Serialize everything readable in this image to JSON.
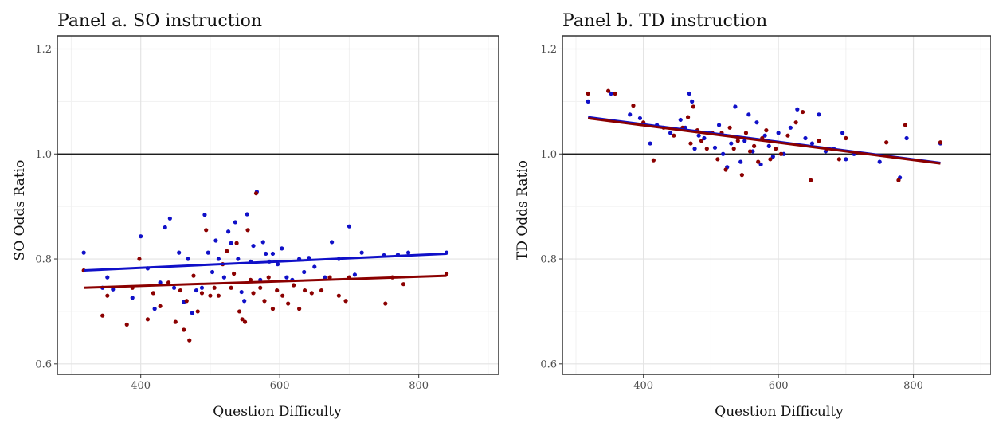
{
  "chart_data": [
    {
      "type": "scatter",
      "title": "Panel a. SO instruction",
      "xlabel": "Question Difficulty",
      "ylabel": "SO Odds Ratio",
      "xlim": [
        280,
        915
      ],
      "ylim": [
        0.58,
        1.225
      ],
      "x_ticks": [
        400,
        600,
        800
      ],
      "y_ticks": [
        0.6,
        0.8,
        1.0,
        1.2
      ],
      "x_tick_labels": [
        "400",
        "600",
        "800"
      ],
      "y_tick_labels": [
        "0.6",
        "0.8",
        "1.0",
        "1.2"
      ],
      "reference_line": 1.0,
      "grid": true,
      "series": [
        {
          "color": "#1010c8",
          "points": [
            [
              318,
              0.812
            ],
            [
              345,
              0.745
            ],
            [
              352,
              0.765
            ],
            [
              360,
              0.742
            ],
            [
              388,
              0.726
            ],
            [
              400,
              0.843
            ],
            [
              410,
              0.782
            ],
            [
              420,
              0.705
            ],
            [
              428,
              0.755
            ],
            [
              435,
              0.86
            ],
            [
              442,
              0.877
            ],
            [
              448,
              0.745
            ],
            [
              455,
              0.812
            ],
            [
              462,
              0.718
            ],
            [
              468,
              0.8
            ],
            [
              474,
              0.697
            ],
            [
              480,
              0.74
            ],
            [
              488,
              0.745
            ],
            [
              492,
              0.884
            ],
            [
              497,
              0.812
            ],
            [
              503,
              0.775
            ],
            [
              508,
              0.835
            ],
            [
              512,
              0.8
            ],
            [
              520,
              0.765
            ],
            [
              526,
              0.852
            ],
            [
              530,
              0.83
            ],
            [
              536,
              0.87
            ],
            [
              540,
              0.8
            ],
            [
              545,
              0.737
            ],
            [
              549,
              0.72
            ],
            [
              553,
              0.885
            ],
            [
              558,
              0.795
            ],
            [
              562,
              0.825
            ],
            [
              567,
              0.928
            ],
            [
              572,
              0.76
            ],
            [
              576,
              0.832
            ],
            [
              580,
              0.81
            ],
            [
              585,
              0.795
            ],
            [
              590,
              0.81
            ],
            [
              597,
              0.79
            ],
            [
              603,
              0.82
            ],
            [
              610,
              0.765
            ],
            [
              618,
              0.76
            ],
            [
              628,
              0.8
            ],
            [
              635,
              0.775
            ],
            [
              642,
              0.802
            ],
            [
              650,
              0.785
            ],
            [
              665,
              0.765
            ],
            [
              675,
              0.832
            ],
            [
              685,
              0.8
            ],
            [
              700,
              0.862
            ],
            [
              708,
              0.77
            ],
            [
              718,
              0.812
            ],
            [
              750,
              0.807
            ],
            [
              770,
              0.808
            ],
            [
              785,
              0.812
            ],
            [
              840,
              0.812
            ]
          ],
          "trend": [
            [
              318,
              0.778
            ],
            [
              840,
              0.81
            ]
          ]
        },
        {
          "color": "#8b0000",
          "points": [
            [
              318,
              0.778
            ],
            [
              345,
              0.692
            ],
            [
              352,
              0.73
            ],
            [
              380,
              0.675
            ],
            [
              388,
              0.745
            ],
            [
              398,
              0.8
            ],
            [
              410,
              0.685
            ],
            [
              418,
              0.735
            ],
            [
              428,
              0.71
            ],
            [
              440,
              0.755
            ],
            [
              450,
              0.68
            ],
            [
              457,
              0.74
            ],
            [
              462,
              0.665
            ],
            [
              466,
              0.72
            ],
            [
              470,
              0.645
            ],
            [
              476,
              0.768
            ],
            [
              482,
              0.7
            ],
            [
              488,
              0.735
            ],
            [
              494,
              0.855
            ],
            [
              500,
              0.73
            ],
            [
              506,
              0.745
            ],
            [
              512,
              0.73
            ],
            [
              518,
              0.79
            ],
            [
              524,
              0.815
            ],
            [
              530,
              0.745
            ],
            [
              534,
              0.772
            ],
            [
              538,
              0.83
            ],
            [
              542,
              0.7
            ],
            [
              546,
              0.685
            ],
            [
              550,
              0.68
            ],
            [
              554,
              0.855
            ],
            [
              558,
              0.76
            ],
            [
              562,
              0.735
            ],
            [
              566,
              0.925
            ],
            [
              572,
              0.745
            ],
            [
              578,
              0.72
            ],
            [
              584,
              0.765
            ],
            [
              590,
              0.705
            ],
            [
              596,
              0.74
            ],
            [
              604,
              0.73
            ],
            [
              612,
              0.715
            ],
            [
              620,
              0.75
            ],
            [
              628,
              0.705
            ],
            [
              636,
              0.74
            ],
            [
              646,
              0.735
            ],
            [
              660,
              0.74
            ],
            [
              672,
              0.765
            ],
            [
              685,
              0.73
            ],
            [
              695,
              0.72
            ],
            [
              700,
              0.765
            ],
            [
              752,
              0.715
            ],
            [
              762,
              0.765
            ],
            [
              778,
              0.752
            ],
            [
              840,
              0.772
            ]
          ],
          "trend": [
            [
              318,
              0.745
            ],
            [
              840,
              0.768
            ]
          ]
        }
      ]
    },
    {
      "type": "scatter",
      "title": "Panel b. TD instruction",
      "xlabel": "Question Difficulty",
      "ylabel": "TD Odds Ratio",
      "xlim": [
        280,
        915
      ],
      "ylim": [
        0.58,
        1.225
      ],
      "x_ticks": [
        400,
        600,
        800
      ],
      "y_ticks": [
        0.6,
        0.8,
        1.0,
        1.2
      ],
      "x_tick_labels": [
        "400",
        "600",
        "800"
      ],
      "y_tick_labels": [
        "0.6",
        "0.8",
        "1.0",
        "1.2"
      ],
      "reference_line": 1.0,
      "grid": true,
      "series": [
        {
          "color": "#1010c8",
          "points": [
            [
              318,
              1.1
            ],
            [
              352,
              1.115
            ],
            [
              380,
              1.075
            ],
            [
              395,
              1.068
            ],
            [
              410,
              1.02
            ],
            [
              420,
              1.055
            ],
            [
              440,
              1.04
            ],
            [
              455,
              1.065
            ],
            [
              462,
              1.05
            ],
            [
              468,
              1.115
            ],
            [
              472,
              1.1
            ],
            [
              476,
              1.01
            ],
            [
              482,
              1.035
            ],
            [
              490,
              1.03
            ],
            [
              498,
              1.04
            ],
            [
              506,
              1.012
            ],
            [
              512,
              1.055
            ],
            [
              518,
              1.0
            ],
            [
              524,
              0.975
            ],
            [
              530,
              1.02
            ],
            [
              536,
              1.09
            ],
            [
              540,
              1.03
            ],
            [
              544,
              0.985
            ],
            [
              550,
              1.025
            ],
            [
              556,
              1.075
            ],
            [
              562,
              1.005
            ],
            [
              568,
              1.06
            ],
            [
              574,
              0.98
            ],
            [
              580,
              1.035
            ],
            [
              586,
              1.015
            ],
            [
              592,
              0.995
            ],
            [
              600,
              1.04
            ],
            [
              608,
              1.0
            ],
            [
              618,
              1.05
            ],
            [
              628,
              1.085
            ],
            [
              640,
              1.03
            ],
            [
              650,
              1.02
            ],
            [
              660,
              1.075
            ],
            [
              670,
              1.005
            ],
            [
              682,
              1.01
            ],
            [
              695,
              1.04
            ],
            [
              700,
              0.99
            ],
            [
              712,
              1.0
            ],
            [
              750,
              0.985
            ],
            [
              780,
              0.955
            ],
            [
              790,
              1.03
            ],
            [
              840,
              1.02
            ]
          ],
          "trend": [
            [
              318,
              1.07
            ],
            [
              840,
              0.983
            ]
          ]
        },
        {
          "color": "#8b0000",
          "points": [
            [
              318,
              1.115
            ],
            [
              348,
              1.12
            ],
            [
              358,
              1.115
            ],
            [
              385,
              1.092
            ],
            [
              400,
              1.06
            ],
            [
              415,
              0.988
            ],
            [
              430,
              1.05
            ],
            [
              445,
              1.035
            ],
            [
              458,
              1.05
            ],
            [
              466,
              1.07
            ],
            [
              470,
              1.02
            ],
            [
              474,
              1.09
            ],
            [
              480,
              1.045
            ],
            [
              486,
              1.025
            ],
            [
              494,
              1.01
            ],
            [
              502,
              1.04
            ],
            [
              510,
              0.99
            ],
            [
              516,
              1.04
            ],
            [
              522,
              0.97
            ],
            [
              528,
              1.05
            ],
            [
              534,
              1.01
            ],
            [
              540,
              1.025
            ],
            [
              546,
              0.96
            ],
            [
              552,
              1.04
            ],
            [
              558,
              1.005
            ],
            [
              564,
              1.015
            ],
            [
              570,
              0.985
            ],
            [
              576,
              1.03
            ],
            [
              582,
              1.045
            ],
            [
              588,
              0.99
            ],
            [
              596,
              1.01
            ],
            [
              604,
              1.0
            ],
            [
              614,
              1.035
            ],
            [
              626,
              1.06
            ],
            [
              636,
              1.08
            ],
            [
              648,
              0.95
            ],
            [
              660,
              1.025
            ],
            [
              672,
              1.01
            ],
            [
              690,
              0.99
            ],
            [
              700,
              1.03
            ],
            [
              760,
              1.022
            ],
            [
              778,
              0.95
            ],
            [
              788,
              1.055
            ],
            [
              840,
              1.022
            ]
          ],
          "trend": [
            [
              318,
              1.068
            ],
            [
              840,
              0.982
            ]
          ]
        }
      ]
    }
  ]
}
